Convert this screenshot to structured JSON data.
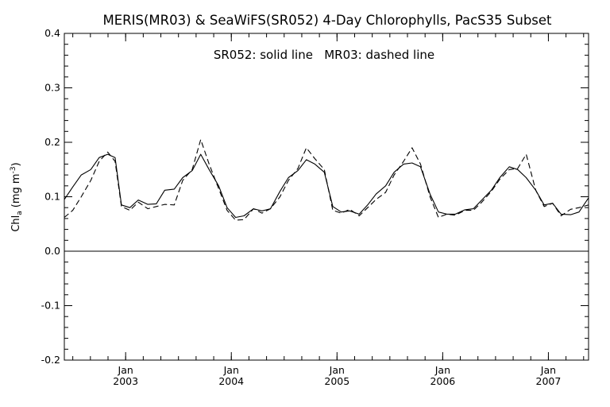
{
  "chart_data": {
    "type": "line",
    "title": "MERIS(MR03) & SeaWiFS(SR052) 4-Day Chlorophylls, PacS35 Subset",
    "annotation": "SR052: solid line   MR03: dashed line",
    "ylabel_main": "Chl",
    "ylabel_sub": "a",
    "ylabel_unit": "(mg m",
    "ylabel_sup": "-3",
    "ylabel_close": ")",
    "ylim": [
      -0.2,
      0.4
    ],
    "xlim": [
      2002.42,
      2007.38
    ],
    "yticks": [
      -0.2,
      -0.1,
      0.0,
      0.1,
      0.2,
      0.3,
      0.4
    ],
    "ytick_labels": [
      "-0.2",
      "-0.1",
      "0.0",
      "0.1",
      "0.2",
      "0.3",
      "0.4"
    ],
    "xticks": [
      {
        "x": 2003.0,
        "month": "Jan",
        "year": "2003"
      },
      {
        "x": 2004.0,
        "month": "Jan",
        "year": "2004"
      },
      {
        "x": 2005.0,
        "month": "Jan",
        "year": "2005"
      },
      {
        "x": 2006.0,
        "month": "Jan",
        "year": "2006"
      },
      {
        "x": 2007.0,
        "month": "Jan",
        "year": "2007"
      }
    ],
    "zero_line": 0.0,
    "series": [
      {
        "name": "SR052",
        "style": "solid",
        "x": [
          2002.42,
          2002.5,
          2002.58,
          2002.67,
          2002.75,
          2002.83,
          2002.9,
          2002.96,
          2003.04,
          2003.12,
          2003.21,
          2003.29,
          2003.37,
          2003.46,
          2003.54,
          2003.63,
          2003.71,
          2003.79,
          2003.88,
          2003.96,
          2004.04,
          2004.12,
          2004.21,
          2004.29,
          2004.37,
          2004.46,
          2004.54,
          2004.63,
          2004.71,
          2004.79,
          2004.88,
          2004.96,
          2005.04,
          2005.12,
          2005.21,
          2005.29,
          2005.37,
          2005.46,
          2005.54,
          2005.63,
          2005.71,
          2005.79,
          2005.88,
          2005.96,
          2006.04,
          2006.12,
          2006.21,
          2006.29,
          2006.37,
          2006.46,
          2006.54,
          2006.63,
          2006.71,
          2006.79,
          2006.88,
          2006.96,
          2007.04,
          2007.12,
          2007.21,
          2007.29,
          2007.38
        ],
        "y": [
          0.095,
          0.118,
          0.14,
          0.15,
          0.172,
          0.178,
          0.172,
          0.085,
          0.08,
          0.094,
          0.086,
          0.087,
          0.112,
          0.114,
          0.135,
          0.148,
          0.178,
          0.15,
          0.12,
          0.08,
          0.062,
          0.065,
          0.078,
          0.074,
          0.078,
          0.11,
          0.135,
          0.148,
          0.168,
          0.16,
          0.145,
          0.082,
          0.072,
          0.074,
          0.068,
          0.085,
          0.105,
          0.12,
          0.145,
          0.16,
          0.162,
          0.155,
          0.105,
          0.072,
          0.068,
          0.068,
          0.076,
          0.078,
          0.094,
          0.112,
          0.135,
          0.155,
          0.15,
          0.135,
          0.112,
          0.085,
          0.088,
          0.068,
          0.067,
          0.072,
          0.098
        ]
      },
      {
        "name": "MR03",
        "style": "dashed",
        "x": [
          2002.42,
          2002.5,
          2002.58,
          2002.67,
          2002.75,
          2002.83,
          2002.9,
          2002.96,
          2003.04,
          2003.12,
          2003.21,
          2003.29,
          2003.37,
          2003.46,
          2003.54,
          2003.63,
          2003.71,
          2003.79,
          2003.88,
          2003.96,
          2004.04,
          2004.12,
          2004.21,
          2004.29,
          2004.37,
          2004.46,
          2004.54,
          2004.63,
          2004.71,
          2004.79,
          2004.88,
          2004.96,
          2005.04,
          2005.12,
          2005.21,
          2005.29,
          2005.37,
          2005.46,
          2005.54,
          2005.63,
          2005.71,
          2005.79,
          2005.88,
          2005.96,
          2006.04,
          2006.12,
          2006.21,
          2006.29,
          2006.37,
          2006.46,
          2006.54,
          2006.63,
          2006.71,
          2006.79,
          2006.88,
          2006.96,
          2007.04,
          2007.12,
          2007.21,
          2007.29,
          2007.38
        ],
        "y": [
          0.062,
          0.075,
          0.1,
          0.13,
          0.165,
          0.182,
          0.165,
          0.082,
          0.075,
          0.09,
          0.078,
          0.082,
          0.086,
          0.085,
          0.13,
          0.15,
          0.205,
          0.16,
          0.115,
          0.075,
          0.057,
          0.058,
          0.078,
          0.07,
          0.078,
          0.1,
          0.13,
          0.152,
          0.19,
          0.17,
          0.15,
          0.075,
          0.07,
          0.077,
          0.065,
          0.08,
          0.095,
          0.108,
          0.14,
          0.165,
          0.19,
          0.16,
          0.1,
          0.062,
          0.068,
          0.066,
          0.075,
          0.075,
          0.09,
          0.11,
          0.132,
          0.15,
          0.152,
          0.178,
          0.112,
          0.082,
          0.088,
          0.065,
          0.077,
          0.08,
          0.085
        ]
      }
    ]
  }
}
